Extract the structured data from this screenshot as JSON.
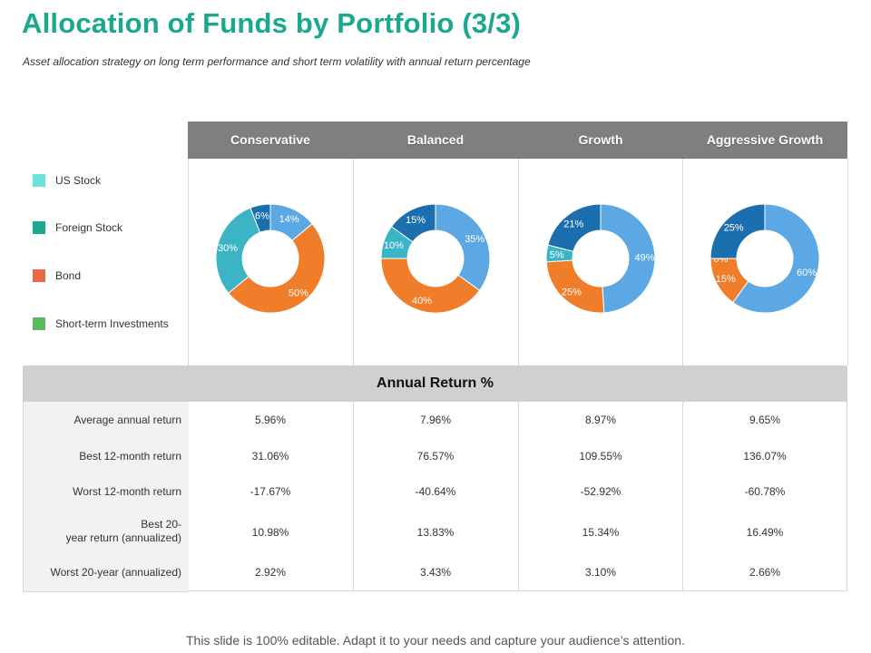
{
  "title": "Allocation of Funds by Portfolio (3/3)",
  "subtitle": "Asset allocation strategy on long term performance and short term volatility with annual return percentage",
  "legend": [
    {
      "label": "US Stock",
      "color": "#6be3d8"
    },
    {
      "label": "Foreign Stock",
      "color": "#1aa98e"
    },
    {
      "label": "Bond",
      "color": "#e8684a"
    },
    {
      "label": "Short-term Investments",
      "color": "#5cb85c"
    }
  ],
  "portfolios": [
    "Conservative",
    "Balanced",
    "Growth",
    "Aggressive Growth"
  ],
  "chart_data": [
    {
      "type": "pie",
      "title": "Conservative",
      "slices": [
        {
          "label": "14%",
          "value": 14,
          "color": "#5ba8e4"
        },
        {
          "label": "50%",
          "value": 50,
          "color": "#f07d2a"
        },
        {
          "label": "30%",
          "value": 30,
          "color": "#3bb5c6"
        },
        {
          "label": "6%",
          "value": 6,
          "color": "#1b6fae"
        }
      ]
    },
    {
      "type": "pie",
      "title": "Balanced",
      "slices": [
        {
          "label": "35%",
          "value": 35,
          "color": "#5ba8e4"
        },
        {
          "label": "40%",
          "value": 40,
          "color": "#f07d2a"
        },
        {
          "label": "10%",
          "value": 10,
          "color": "#3bb5c6"
        },
        {
          "label": "15%",
          "value": 15,
          "color": "#1b6fae"
        }
      ]
    },
    {
      "type": "pie",
      "title": "Growth",
      "slices": [
        {
          "label": "49%",
          "value": 49,
          "color": "#5ba8e4"
        },
        {
          "label": "25%",
          "value": 25,
          "color": "#f07d2a"
        },
        {
          "label": "5%",
          "value": 5,
          "color": "#3bb5c6"
        },
        {
          "label": "21%",
          "value": 21,
          "color": "#1b6fae"
        }
      ]
    },
    {
      "type": "pie",
      "title": "Aggressive Growth",
      "slices": [
        {
          "label": "60%",
          "value": 60,
          "color": "#5ba8e4"
        },
        {
          "label": "15%",
          "value": 15,
          "color": "#f07d2a"
        },
        {
          "label": "0%",
          "value": 0,
          "color": "#3bb5c6"
        },
        {
          "label": "25%",
          "value": 25,
          "color": "#1b6fae"
        }
      ]
    }
  ],
  "annual_return": {
    "heading": "Annual Return %",
    "rows": [
      {
        "label": "Average  annual return",
        "values": [
          "5.96%",
          "7.96%",
          "8.97%",
          "9.65%"
        ]
      },
      {
        "label": "Best 12-month  return",
        "values": [
          "31.06%",
          "76.57%",
          "109.55%",
          "136.07%"
        ]
      },
      {
        "label": "Worst 12-month  return",
        "values": [
          "-17.67%",
          "-40.64%",
          "-52.92%",
          "-60.78%"
        ]
      },
      {
        "label": "Best 20-\nyear return  (annualized)",
        "values": [
          "10.98%",
          "13.83%",
          "15.34%",
          "16.49%"
        ]
      },
      {
        "label": "Worst 20-year  (annualized)",
        "values": [
          "2.92%",
          "3.43%",
          "3.10%",
          "2.66%"
        ]
      }
    ]
  },
  "footer": "This slide is 100% editable. Adapt it to your needs and capture your audience’s attention."
}
